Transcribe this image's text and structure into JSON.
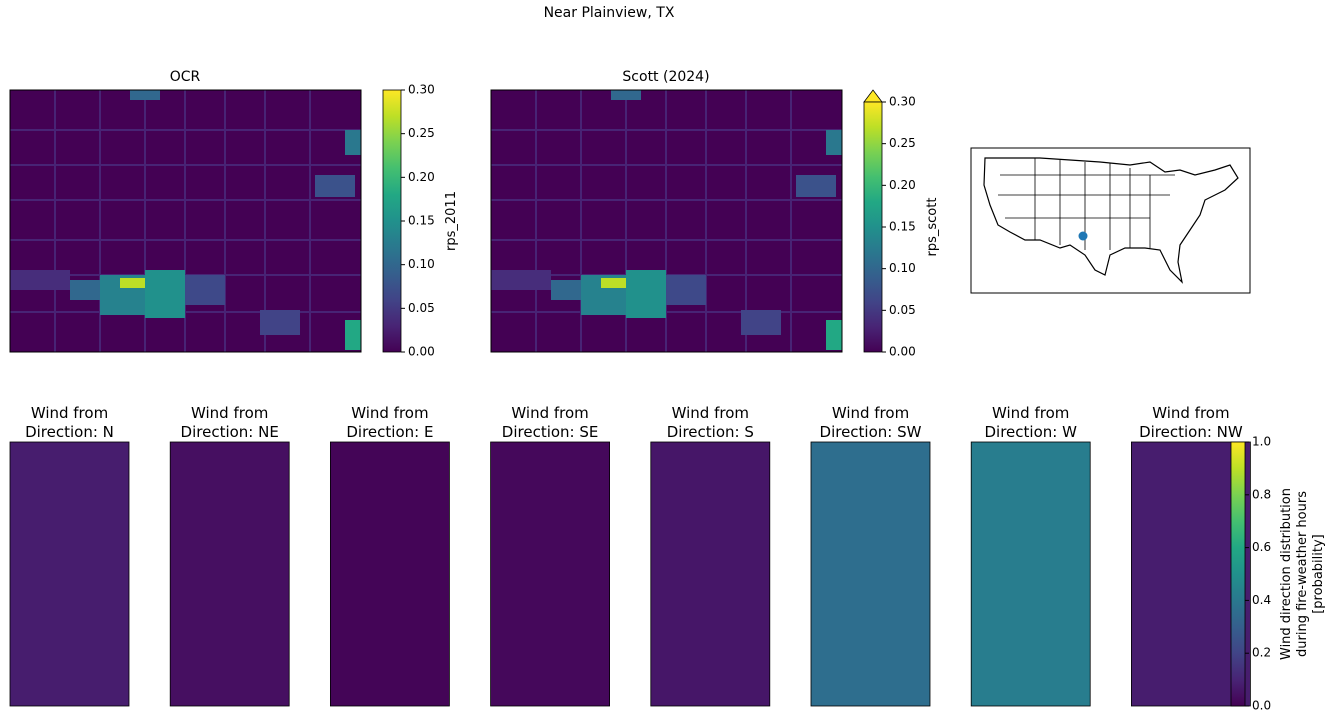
{
  "title": "Near Plainview, TX",
  "chart_data": [
    {
      "type": "image",
      "title": "OCR",
      "colorbar": {
        "label": "rps_2011",
        "lim": [
          0,
          0.3
        ],
        "ticks": [
          {
            "value": 0,
            "label": "0.00"
          },
          {
            "value": 0.05,
            "label": "0.05"
          },
          {
            "value": 0.1,
            "label": "0.10"
          },
          {
            "value": 0.15,
            "label": "0.15"
          },
          {
            "value": 0.2,
            "label": "0.20"
          },
          {
            "value": 0.25,
            "label": "0.25"
          },
          {
            "value": 0.3,
            "label": "0.30"
          }
        ]
      }
    },
    {
      "type": "image",
      "title": "Scott (2024)",
      "colorbar": {
        "label": "rps_scott",
        "lim": [
          0,
          0.3
        ],
        "extend": "max",
        "ticks": [
          {
            "value": 0,
            "label": "0.00"
          },
          {
            "value": 0.05,
            "label": "0.05"
          },
          {
            "value": 0.1,
            "label": "0.10"
          },
          {
            "value": 0.15,
            "label": "0.15"
          },
          {
            "value": 0.2,
            "label": "0.20"
          },
          {
            "value": 0.25,
            "label": "0.25"
          },
          {
            "value": 0.3,
            "label": "0.30"
          }
        ]
      }
    },
    {
      "type": "heatmap",
      "panels": [
        {
          "title": [
            "Wind from",
            "Direction: N"
          ],
          "value": 0.08
        },
        {
          "title": [
            "Wind from",
            "Direction: NE"
          ],
          "value": 0.04
        },
        {
          "title": [
            "Wind from",
            "Direction: E"
          ],
          "value": 0.01
        },
        {
          "title": [
            "Wind from",
            "Direction: SE"
          ],
          "value": 0.02
        },
        {
          "title": [
            "Wind from",
            "Direction: S"
          ],
          "value": 0.06
        },
        {
          "title": [
            "Wind from",
            "Direction: SW"
          ],
          "value": 0.36
        },
        {
          "title": [
            "Wind from",
            "Direction: W"
          ],
          "value": 0.42
        },
        {
          "title": [
            "Wind from",
            "Direction: NW"
          ],
          "value": 0.08
        }
      ],
      "colorbar": {
        "label": [
          "Wind direction distribution",
          "during fire-weather hours",
          "[probability]"
        ],
        "lim": [
          0,
          1
        ],
        "ticks": [
          {
            "value": 0,
            "label": "0.0"
          },
          {
            "value": 0.2,
            "label": "0.2"
          },
          {
            "value": 0.4,
            "label": "0.4"
          },
          {
            "value": 0.6,
            "label": "0.6"
          },
          {
            "value": 0.8,
            "label": "0.8"
          },
          {
            "value": 1,
            "label": "1.0"
          }
        ]
      }
    }
  ]
}
